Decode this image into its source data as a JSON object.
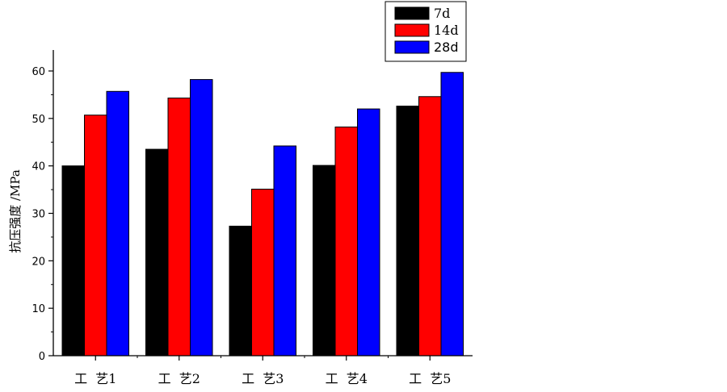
{
  "chart_data": {
    "type": "bar",
    "categories": [
      "工  艺1",
      "工  艺2",
      "工  艺3",
      "工  艺4",
      "工  艺5"
    ],
    "series": [
      {
        "name": "7d",
        "color": "#000000",
        "values": [
          40.0,
          43.5,
          27.3,
          40.1,
          52.6
        ]
      },
      {
        "name": "14d",
        "color": "#ff0000",
        "values": [
          50.7,
          54.3,
          35.1,
          48.2,
          54.6
        ]
      },
      {
        "name": "28d",
        "color": "#0000ff",
        "values": [
          55.7,
          58.2,
          44.2,
          52.0,
          59.7
        ]
      }
    ],
    "title": "",
    "xlabel": "",
    "ylabel": "抗压强度 /MPa",
    "ylim": [
      0,
      65
    ],
    "yticks": [
      0,
      10,
      20,
      30,
      40,
      50,
      60
    ],
    "grid": false,
    "legend_position": "top-right"
  }
}
